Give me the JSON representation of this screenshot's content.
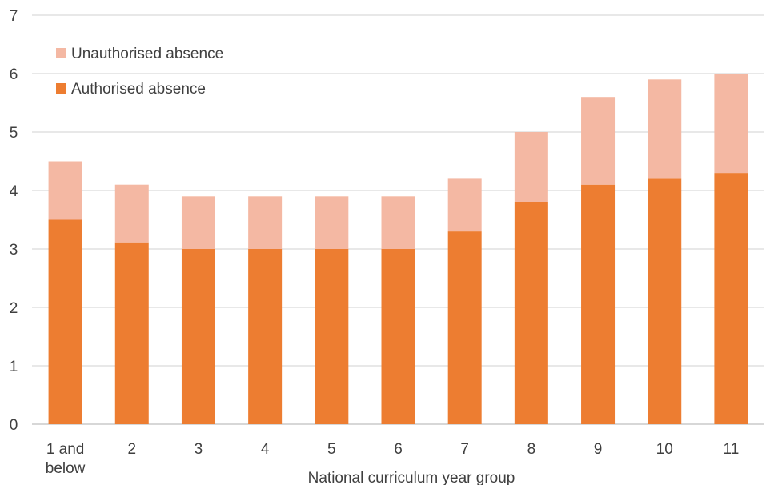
{
  "chart_data": {
    "type": "bar",
    "stacked": true,
    "title": "",
    "xlabel": "National curriculum year group",
    "ylabel": "",
    "ylim": [
      0,
      7
    ],
    "yticks": [
      0,
      1,
      2,
      3,
      4,
      5,
      6,
      7
    ],
    "grid": true,
    "legend_position": "top-left",
    "categories": [
      "1 and below",
      "2",
      "3",
      "4",
      "5",
      "6",
      "7",
      "8",
      "9",
      "10",
      "11"
    ],
    "category_lines": [
      [
        "1 and",
        "below"
      ],
      [
        "2"
      ],
      [
        "3"
      ],
      [
        "4"
      ],
      [
        "5"
      ],
      [
        "6"
      ],
      [
        "7"
      ],
      [
        "8"
      ],
      [
        "9"
      ],
      [
        "10"
      ],
      [
        "11"
      ]
    ],
    "series": [
      {
        "name": "Authorised absence",
        "color": "#ed7d31",
        "values": [
          3.5,
          3.1,
          3.0,
          3.0,
          3.0,
          3.0,
          3.3,
          3.8,
          4.1,
          4.2,
          4.3
        ]
      },
      {
        "name": "Unauthorised absence",
        "color": "#f4b8a3",
        "values": [
          1.0,
          1.0,
          0.9,
          0.9,
          0.9,
          0.9,
          0.9,
          1.2,
          1.5,
          1.7,
          1.7
        ]
      }
    ],
    "legend_order": [
      "Unauthorised absence",
      "Authorised absence"
    ]
  }
}
